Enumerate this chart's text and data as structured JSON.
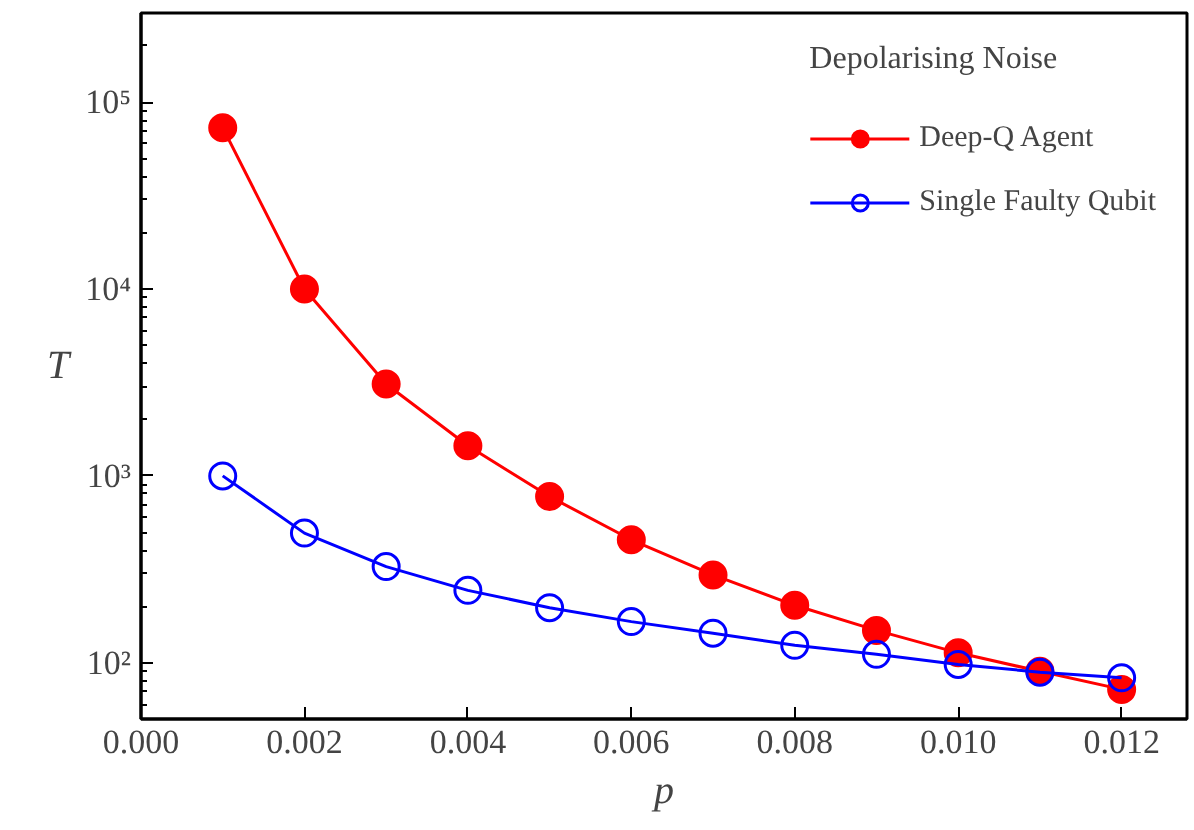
{
  "chart_data": {
    "type": "line",
    "legend_title": "Depolarising Noise",
    "xlabel": "p",
    "ylabel": "T",
    "log": "y",
    "grid": false,
    "legend": "top right",
    "line_style": "solid",
    "x": [
      0.001,
      0.002,
      0.003,
      0.004,
      0.005,
      0.006,
      0.007,
      0.008,
      0.009,
      0.01,
      0.011,
      0.012
    ],
    "xlim": [
      0,
      0.0128
    ],
    "xticks": [
      {
        "value": 0,
        "label": "0.000"
      },
      {
        "value": 0.002,
        "label": "0.002"
      },
      {
        "value": 0.004,
        "label": "0.004"
      },
      {
        "value": 0.006,
        "label": "0.006"
      },
      {
        "value": 0.008,
        "label": "0.008"
      },
      {
        "value": 0.01,
        "label": "0.010"
      },
      {
        "value": 0.012,
        "label": "0.012"
      }
    ],
    "ylim": [
      50,
      300000
    ],
    "yticks": [
      {
        "value": 100,
        "label": "10²"
      },
      {
        "value": 1000,
        "label": "10³"
      },
      {
        "value": 10000,
        "label": "10⁴"
      },
      {
        "value": 100000,
        "label": "10⁵"
      }
    ],
    "series": [
      {
        "name": "Deep-Q Agent",
        "color": "#ff0000",
        "marker": "circle",
        "values": [
          73000,
          10000,
          3100,
          1450,
          775,
          455,
          295,
          203,
          149,
          113,
          90,
          72
        ]
      },
      {
        "name": "Single Faulty Qubit",
        "color": "#0000ff",
        "marker": "circle",
        "values": [
          1000,
          494,
          327,
          244,
          197,
          166,
          144,
          124,
          111,
          98,
          89,
          83
        ]
      }
    ]
  }
}
